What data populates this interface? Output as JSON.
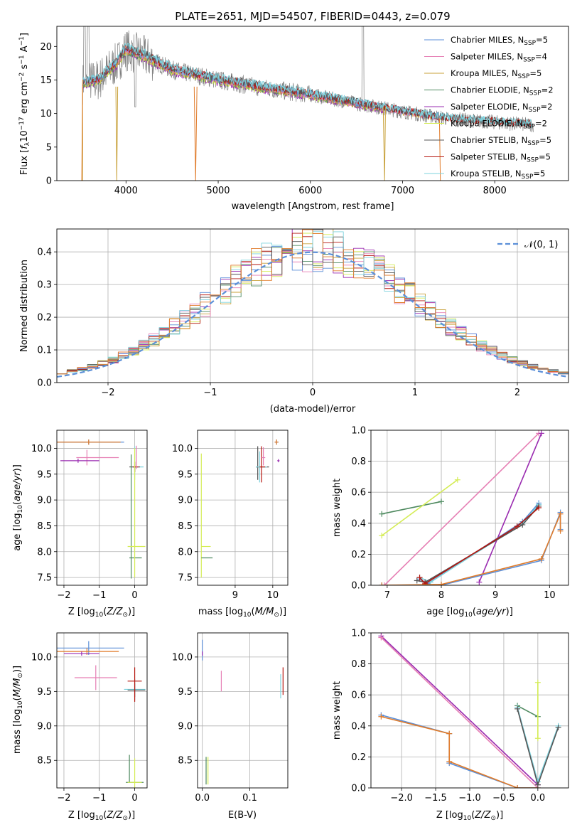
{
  "figure": {
    "title": "PLATE=2651, MJD=54507, FIBERID=0443, z=0.079"
  },
  "colors": {
    "chabrier_miles": "#5b8fd8",
    "salpeter_miles": "#e67fb4",
    "kroupa_miles": "#c8a13a",
    "chabrier_elodie": "#4f8a60",
    "salpeter_elodie": "#9a2bb0",
    "kroupa_elodie": "#d4ec55",
    "chabrier_stelib": "#555555",
    "salpeter_stelib": "#b5160f",
    "kroupa_stelib": "#7ed3de",
    "orange": "#e07b2a",
    "data": "#808080"
  },
  "chart_data": [
    {
      "id": "spectrum",
      "type": "line",
      "title": "PLATE=2651, MJD=54507, FIBERID=0443, z=0.079",
      "xlabel": "wavelength [Angstrom, rest frame]",
      "ylabel": "Flux [f_λ 10^-17 erg cm^-2 s^-1 A^-1]",
      "xlim": [
        3250,
        8800
      ],
      "ylim": [
        0,
        23
      ],
      "xticks": [
        "4000",
        "5000",
        "6000",
        "7000",
        "8000"
      ],
      "yticks": [
        "0",
        "5",
        "10",
        "15",
        "20"
      ],
      "legend": [
        {
          "key": "chabrier_miles",
          "main": "Chabrier MILES, N",
          "sub": "SSP",
          "tail": "=5"
        },
        {
          "key": "salpeter_miles",
          "main": "Salpeter MILES, N",
          "sub": "SSP",
          "tail": "=4"
        },
        {
          "key": "kroupa_miles",
          "main": "Kroupa MILES, N",
          "sub": "SSP",
          "tail": "=5"
        },
        {
          "key": "chabrier_elodie",
          "main": "Chabrier ELODIE, N",
          "sub": "SSP",
          "tail": "=2"
        },
        {
          "key": "salpeter_elodie",
          "main": "Salpeter ELODIE, N",
          "sub": "SSP",
          "tail": "=2"
        },
        {
          "key": "kroupa_elodie",
          "main": "Kroupa ELODIE, N",
          "sub": "SSP",
          "tail": "=2"
        },
        {
          "key": "chabrier_stelib",
          "main": "Chabrier STELIB, N",
          "sub": "SSP",
          "tail": "=5"
        },
        {
          "key": "salpeter_stelib",
          "main": "Salpeter STELIB, N",
          "sub": "SSP",
          "tail": "=5"
        },
        {
          "key": "kroupa_stelib",
          "main": "Kroupa STELIB, N",
          "sub": "SSP",
          "tail": "=5"
        }
      ],
      "continuum_x": [
        3530,
        3700,
        3900,
        4000,
        4200,
        4500,
        5000,
        5500,
        6000,
        6500,
        7000,
        7500,
        8400
      ],
      "continuum_y": [
        14.5,
        15.0,
        17.5,
        19.5,
        18.5,
        16.5,
        15.0,
        13.8,
        12.8,
        11.5,
        10.3,
        9.2,
        8.3
      ]
    },
    {
      "id": "residuals",
      "type": "bar",
      "xlabel": "(data-model)/error",
      "ylabel": "Normed distribution",
      "xlim": [
        -2.5,
        2.5
      ],
      "ylim": [
        0,
        0.47
      ],
      "xticks": [
        "−2",
        "−1",
        "0",
        "1",
        "2"
      ],
      "yticks": [
        "0.0",
        "0.1",
        "0.2",
        "0.3",
        "0.4"
      ],
      "legend": "𝒩(0, 1)",
      "bin_width": 0.1
    },
    {
      "id": "age_vs_Z",
      "type": "scatter",
      "xlabel": "Z [log10(Z/Z⊙)]",
      "ylabel": "age [log10(age/yr)]",
      "xlim": [
        -2.2,
        0.35
      ],
      "ylim": [
        7.35,
        10.35
      ],
      "xticks": [
        "−2",
        "−1",
        "0"
      ],
      "yticks": [
        "7.5",
        "8.0",
        "8.5",
        "9.0",
        "9.5",
        "10.0"
      ]
    },
    {
      "id": "age_vs_mass",
      "type": "scatter",
      "xlabel": "mass [log10(M/M⊙)]",
      "xlim": [
        8.0,
        10.4
      ],
      "ylim": [
        7.35,
        10.35
      ],
      "xticks": [
        "9",
        "10"
      ]
    },
    {
      "id": "weight_vs_age",
      "type": "line",
      "xlabel": "age [log10(age/yr)]",
      "ylabel": "mass weight",
      "xlim": [
        6.7,
        10.35
      ],
      "ylim": [
        0,
        1
      ],
      "xticks": [
        "7",
        "8",
        "9",
        "10"
      ],
      "yticks": [
        "0.0",
        "0.2",
        "0.4",
        "0.6",
        "0.8",
        "1.0"
      ],
      "series": [
        {
          "key": "chabrier_elodie",
          "x": [
            6.9,
            8.0
          ],
          "y": [
            0.46,
            0.54
          ]
        },
        {
          "key": "kroupa_elodie",
          "x": [
            6.9,
            8.3
          ],
          "y": [
            0.32,
            0.68
          ]
        },
        {
          "key": "salpeter_miles",
          "x": [
            6.95,
            9.8
          ],
          "y": [
            0.0,
            0.98
          ]
        },
        {
          "key": "salpeter_elodie",
          "x": [
            8.7,
            9.85
          ],
          "y": [
            0.02,
            0.98
          ]
        },
        {
          "key": "chabrier_miles",
          "x": [
            7.6,
            7.75,
            9.5,
            9.8
          ],
          "y": [
            0.04,
            0.01,
            0.41,
            0.53
          ]
        },
        {
          "key": "kroupa_stelib",
          "x": [
            7.6,
            7.8,
            9.5,
            9.8
          ],
          "y": [
            0.05,
            0.02,
            0.4,
            0.52
          ]
        },
        {
          "key": "chabrier_stelib",
          "x": [
            7.55,
            7.7,
            9.5,
            9.8
          ],
          "y": [
            0.03,
            0.02,
            0.39,
            0.51
          ]
        },
        {
          "key": "salpeter_stelib",
          "x": [
            7.6,
            7.7,
            9.4,
            9.8
          ],
          "y": [
            0.05,
            0.01,
            0.38,
            0.5
          ]
        },
        {
          "key": "chabrier_miles",
          "x": [
            6.9,
            8.0,
            9.85,
            10.2,
            10.2
          ],
          "y": [
            0.0,
            0.0,
            0.16,
            0.47,
            0.36
          ]
        },
        {
          "key": "orange",
          "x": [
            6.9,
            8.0,
            9.85,
            10.2,
            10.2
          ],
          "y": [
            0.0,
            0.005,
            0.17,
            0.46,
            0.35
          ]
        }
      ]
    },
    {
      "id": "mass_vs_Z",
      "type": "scatter",
      "xlabel": "Z [log10(Z/Z⊙)]",
      "ylabel": "mass [log10(M/M⊙)]",
      "xlim": [
        -2.2,
        0.35
      ],
      "ylim": [
        8.1,
        10.35
      ],
      "xticks": [
        "−2",
        "−1",
        "0"
      ],
      "yticks": [
        "8.5",
        "9.0",
        "9.5",
        "10.0"
      ]
    },
    {
      "id": "mass_vs_ebv",
      "type": "scatter",
      "xlabel": "E(B-V)",
      "xlim": [
        -0.01,
        0.18
      ],
      "ylim": [
        8.1,
        10.35
      ],
      "xticks": [
        "0.0",
        "0.1"
      ]
    },
    {
      "id": "weight_vs_Z",
      "type": "line",
      "xlabel": "Z [log10(Z/Z⊙)]",
      "ylabel": "mass weight",
      "xlim": [
        -2.45,
        0.45
      ],
      "ylim": [
        0,
        1
      ],
      "xticks": [
        "−2.0",
        "−1.5",
        "−1.0",
        "−0.5",
        "0.0"
      ],
      "yticks": [
        "0.0",
        "0.2",
        "0.4",
        "0.6",
        "0.8",
        "1.0"
      ],
      "series": [
        {
          "key": "salpeter_elodie",
          "x": [
            -2.3,
            0.0
          ],
          "y": [
            0.98,
            0.02
          ]
        },
        {
          "key": "salpeter_miles",
          "x": [
            -2.3,
            0.0
          ],
          "y": [
            0.97,
            0.0
          ]
        },
        {
          "key": "chabrier_miles",
          "x": [
            -2.3,
            -1.3,
            -1.3,
            -0.3,
            0.0
          ],
          "y": [
            0.47,
            0.35,
            0.16,
            0.0,
            0.0
          ]
        },
        {
          "key": "orange",
          "x": [
            -2.3,
            -1.3,
            -1.3,
            -0.3,
            0.0
          ],
          "y": [
            0.46,
            0.35,
            0.17,
            0.0,
            0.0
          ]
        },
        {
          "key": "chabrier_elodie",
          "x": [
            -0.3,
            0.0
          ],
          "y": [
            0.53,
            0.46
          ]
        },
        {
          "key": "kroupa_stelib",
          "x": [
            -0.3,
            0.0,
            0.3
          ],
          "y": [
            0.52,
            0.04,
            0.4
          ]
        },
        {
          "key": "chabrier_stelib",
          "x": [
            -0.3,
            0.0,
            0.3
          ],
          "y": [
            0.51,
            0.02,
            0.39
          ]
        },
        {
          "key": "kroupa_elodie",
          "x": [
            0.0,
            0.0
          ],
          "y": [
            0.32,
            0.68
          ]
        }
      ]
    }
  ]
}
